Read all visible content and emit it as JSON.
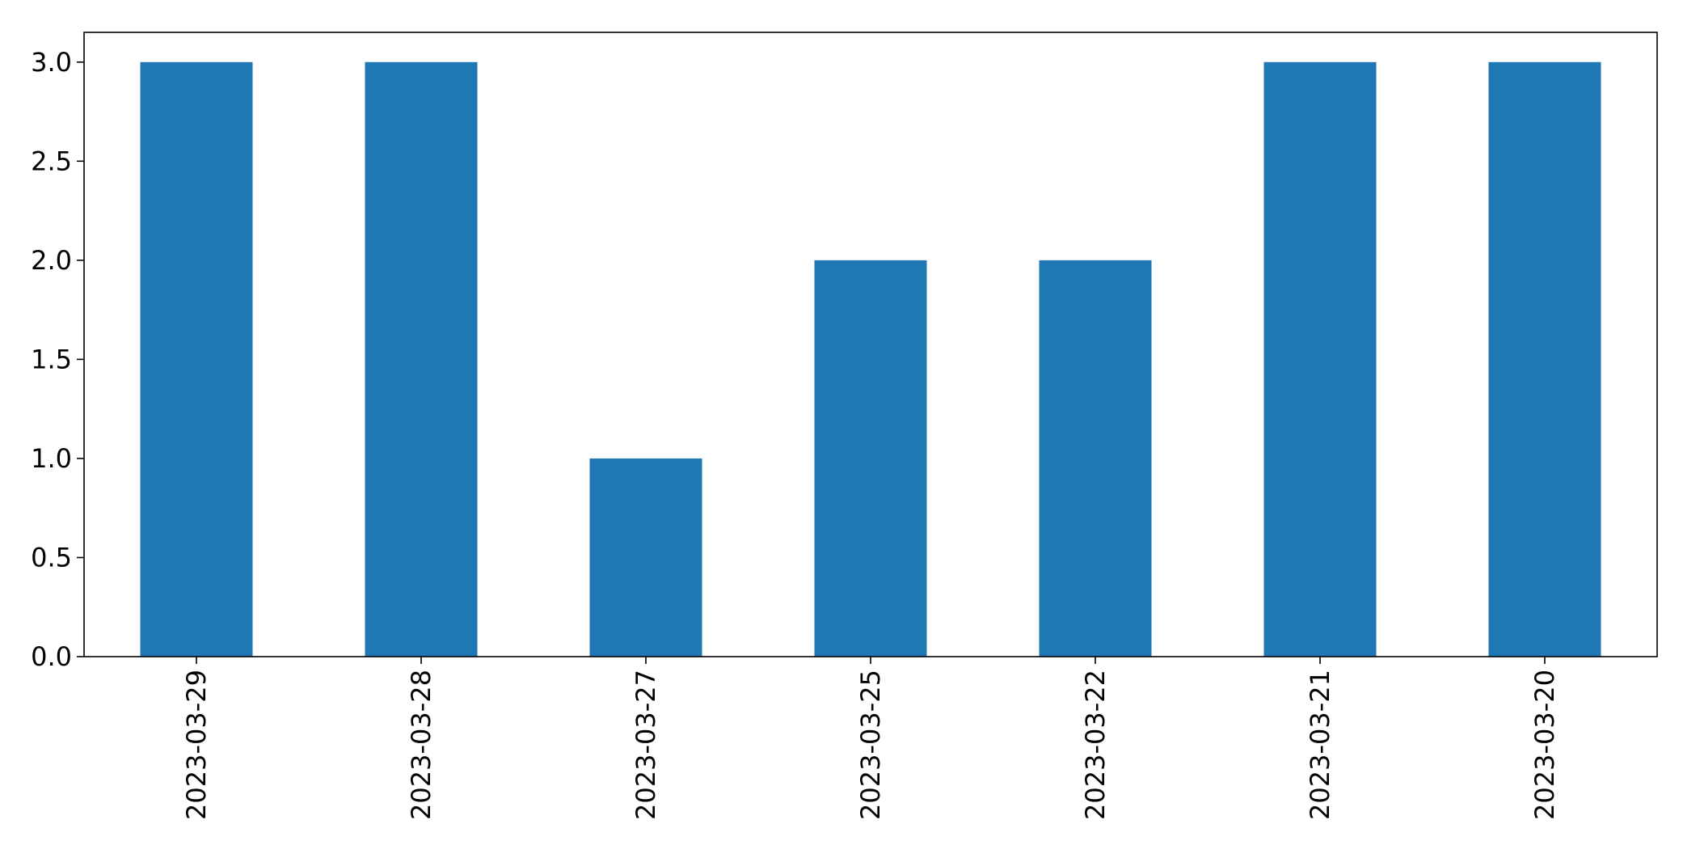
{
  "chart_data": {
    "type": "bar",
    "title": "",
    "xlabel": "",
    "ylabel": "",
    "categories": [
      "2023-03-29",
      "2023-03-28",
      "2023-03-27",
      "2023-03-25",
      "2023-03-22",
      "2023-03-21",
      "2023-03-20"
    ],
    "values": [
      3,
      3,
      1,
      2,
      2,
      3,
      3
    ],
    "ylim": [
      0,
      3.15
    ],
    "yticks": [
      0.0,
      0.5,
      1.0,
      1.5,
      2.0,
      2.5,
      3.0
    ],
    "ytick_labels": [
      "0.0",
      "0.5",
      "1.0",
      "1.5",
      "2.0",
      "2.5",
      "3.0"
    ],
    "grid": false,
    "legend": "none",
    "bar_color": "#1f77b4"
  }
}
